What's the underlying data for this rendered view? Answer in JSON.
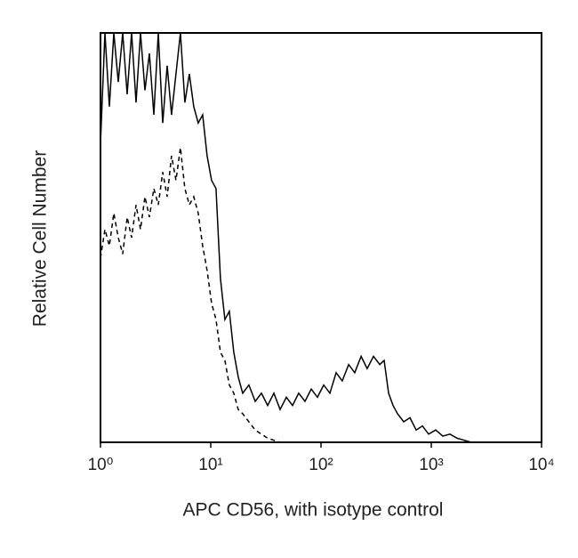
{
  "chart_data": {
    "type": "line",
    "xlabel": "APC CD56, with isotype control",
    "ylabel": "Relative Cell Number",
    "xscale": "log",
    "xlim": [
      1,
      10000
    ],
    "xticks": [
      {
        "value": 1,
        "label": "10⁰"
      },
      {
        "value": 10,
        "label": "10¹"
      },
      {
        "value": 100,
        "label": "10²"
      },
      {
        "value": 1000,
        "label": "10³"
      },
      {
        "value": 10000,
        "label": "10⁴"
      }
    ],
    "ylim": [
      0,
      100
    ],
    "x": [
      1,
      1.097,
      1.204,
      1.321,
      1.449,
      1.59,
      1.745,
      1.915,
      2.101,
      2.305,
      2.529,
      2.775,
      3.045,
      3.341,
      3.666,
      4.022,
      4.413,
      4.842,
      5.313,
      5.829,
      6.396,
      7.018,
      7.7,
      8.448,
      9.27,
      10.17,
      11.16,
      12.24,
      13.43,
      14.74,
      16.17,
      17.74,
      19.47,
      22.2,
      25.3,
      28.8,
      32.8,
      37.4,
      42.6,
      48.5,
      55.2,
      62.8,
      71.6,
      81.5,
      92.8,
      105.7,
      120.4,
      137,
      156,
      178,
      202,
      231,
      262,
      299,
      341,
      374,
      410,
      450,
      494,
      562,
      640,
      729,
      830,
      946,
      1097,
      1273,
      1476,
      1713,
      1987,
      2305
    ],
    "series": [
      {
        "color": "#000000",
        "dashed": false,
        "values": [
          73,
          100,
          82,
          100,
          88,
          100,
          85,
          100,
          83,
          100,
          86,
          95,
          80,
          100,
          78,
          92,
          80,
          90,
          100,
          83,
          90,
          82,
          78,
          80,
          70,
          64,
          62,
          40,
          30,
          32,
          22,
          16,
          12,
          14,
          10,
          12,
          9,
          12,
          8,
          11,
          9,
          12,
          10,
          13,
          11,
          14,
          12,
          17,
          15,
          19,
          17,
          21,
          18,
          21,
          19,
          20,
          12,
          9,
          7,
          5,
          6,
          3,
          4,
          2,
          3,
          1.5,
          2,
          1,
          0.5,
          0
        ]
      },
      {
        "color": "#000000",
        "dashed": true,
        "values": [
          45,
          52,
          48,
          56,
          50,
          46,
          55,
          50,
          58,
          52,
          60,
          55,
          62,
          58,
          66,
          60,
          70,
          64,
          72,
          62,
          58,
          60,
          56,
          48,
          42,
          34,
          30,
          22,
          20,
          14,
          12,
          8,
          7,
          5,
          3,
          2,
          1,
          0.5,
          0,
          0,
          0,
          0,
          0,
          0,
          0,
          0,
          0,
          0,
          0,
          0,
          0,
          0,
          0,
          0,
          0,
          0,
          0,
          0,
          0,
          0,
          0,
          0,
          0,
          0,
          0,
          0,
          0,
          0,
          0,
          0
        ]
      }
    ]
  }
}
